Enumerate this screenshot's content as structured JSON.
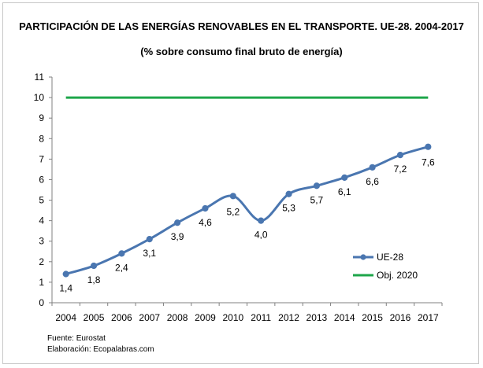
{
  "chart_data": {
    "type": "line",
    "title": "PARTICIPACIÓN DE LAS ENERGÍAS RENOVABLES EN EL TRANSPORTE. UE-28. 2004-2017",
    "subtitle": "(% sobre consumo final bruto de energía)",
    "xlabel": "",
    "ylabel": "",
    "categories": [
      "2004",
      "2005",
      "2006",
      "2007",
      "2008",
      "2009",
      "2010",
      "2011",
      "2012",
      "2013",
      "2014",
      "2015",
      "2016",
      "2017"
    ],
    "ylim": [
      0,
      11
    ],
    "yticks": [
      "0",
      "1",
      "2",
      "3",
      "4",
      "5",
      "6",
      "7",
      "8",
      "9",
      "10",
      "11"
    ],
    "grid": false,
    "legend_position": "bottom-right",
    "series": [
      {
        "name": "UE-28",
        "color": "#4a76b0",
        "values": [
          1.4,
          1.8,
          2.4,
          3.1,
          3.9,
          4.6,
          5.2,
          4.0,
          5.3,
          5.7,
          6.1,
          6.6,
          7.2,
          7.6
        ],
        "labels": [
          "1,4",
          "1,8",
          "2,4",
          "3,1",
          "3,9",
          "4,6",
          "5,2",
          "4,0",
          "5,3",
          "5,7",
          "6,1",
          "6,6",
          "7,2",
          "7,6"
        ]
      },
      {
        "name": "Obj. 2020",
        "color": "#1ea64a",
        "values": [
          10,
          10,
          10,
          10,
          10,
          10,
          10,
          10,
          10,
          10,
          10,
          10,
          10,
          10
        ]
      }
    ]
  },
  "footer": {
    "source": "Fuente: Eurostat",
    "credit": "Elaboración: Ecopalabras.com"
  }
}
